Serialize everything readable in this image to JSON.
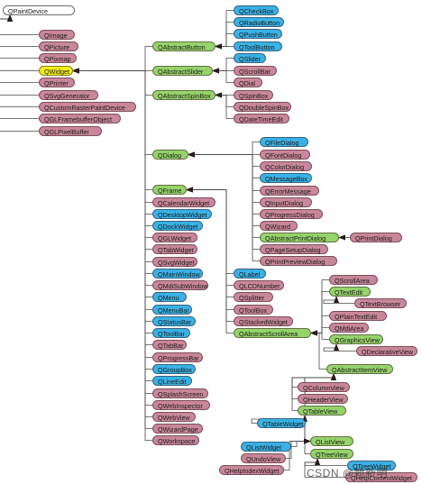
{
  "diagram": {
    "colors": {
      "pink": "#c9879a",
      "blue": "#39b2e6",
      "green": "#96d36a",
      "yellow": "#f3ef16",
      "white": "#ffffff",
      "edge": "#4a4a4a",
      "arrow": "#2a1a1a"
    },
    "nodes": [
      {
        "id": "QPaintDevice",
        "label": "QPaintDevice",
        "kind": "white"
      },
      {
        "id": "QImage",
        "label": "QImage",
        "kind": "pink"
      },
      {
        "id": "QPicture",
        "label": "QPicture",
        "kind": "pink"
      },
      {
        "id": "QPixmap",
        "label": "QPixmap",
        "kind": "pink"
      },
      {
        "id": "QWidget",
        "label": "QWidget",
        "kind": "yellow"
      },
      {
        "id": "QPrinter",
        "label": "QPrinter",
        "kind": "pink"
      },
      {
        "id": "QSvgGenerator",
        "label": "QSvgGenerator",
        "kind": "pink"
      },
      {
        "id": "QCustomRasterPaintDevice",
        "label": "QCustomRasterPaintDevice",
        "kind": "pink"
      },
      {
        "id": "QGLFramebufferObject",
        "label": "QGLFramebufferObject",
        "kind": "pink"
      },
      {
        "id": "QGLPixelBuffer",
        "label": "QGLPixelBuffer",
        "kind": "pink"
      },
      {
        "id": "QAbstractButton",
        "label": "QAbstractButton",
        "kind": "green"
      },
      {
        "id": "QCheckBox",
        "label": "QCheckBox",
        "kind": "blue"
      },
      {
        "id": "QRadioButton",
        "label": "QRadioButton",
        "kind": "blue"
      },
      {
        "id": "QPushButton",
        "label": "QPushButton",
        "kind": "blue"
      },
      {
        "id": "QToolButton",
        "label": "QToolButton",
        "kind": "blue"
      },
      {
        "id": "QAbstractSlider",
        "label": "QAbstractSlider",
        "kind": "green"
      },
      {
        "id": "QSlider",
        "label": "QSlider",
        "kind": "blue"
      },
      {
        "id": "QScrollBar",
        "label": "QScrollBar",
        "kind": "pink"
      },
      {
        "id": "QDial",
        "label": "QDial",
        "kind": "pink"
      },
      {
        "id": "QAbstractSpinBox",
        "label": "QAbstractSpinBox",
        "kind": "green"
      },
      {
        "id": "QSpinBox",
        "label": "QSpinBox",
        "kind": "pink"
      },
      {
        "id": "QDoubleSpinBox",
        "label": "QDoubleSpinBox",
        "kind": "pink"
      },
      {
        "id": "QDateTimeEdit",
        "label": "QDateTimeEdit",
        "kind": "pink"
      },
      {
        "id": "QDialog",
        "label": "QDialog",
        "kind": "green"
      },
      {
        "id": "QFileDialog",
        "label": "QFileDialog",
        "kind": "blue"
      },
      {
        "id": "QFontDialog",
        "label": "QFontDialog",
        "kind": "pink"
      },
      {
        "id": "QColorDialog",
        "label": "QColorDialog",
        "kind": "pink"
      },
      {
        "id": "QMessageBox",
        "label": "QMessageBox",
        "kind": "blue"
      },
      {
        "id": "QErrorMessage",
        "label": "QErrorMessage",
        "kind": "pink"
      },
      {
        "id": "QInputDialog",
        "label": "QInputDialog",
        "kind": "pink"
      },
      {
        "id": "QProgressDialog",
        "label": "QProgressDialog",
        "kind": "pink"
      },
      {
        "id": "QWizard",
        "label": "QWizard",
        "kind": "pink"
      },
      {
        "id": "QAbstractPrintDialog",
        "label": "QAbstractPrintDialog",
        "kind": "green"
      },
      {
        "id": "QPrintDialog",
        "label": "QPrintDialog",
        "kind": "pink"
      },
      {
        "id": "QPageSetupDialog",
        "label": "QPageSetupDialog",
        "kind": "pink"
      },
      {
        "id": "QPrintPreviewDialog",
        "label": "QPrintPreviewDialog",
        "kind": "pink"
      },
      {
        "id": "QFrame",
        "label": "QFrame",
        "kind": "green"
      },
      {
        "id": "QCalendarWidget",
        "label": "QCalendarWidget",
        "kind": "pink"
      },
      {
        "id": "QDesktopWidget",
        "label": "QDesktopWidget",
        "kind": "blue"
      },
      {
        "id": "QDockWidget",
        "label": "QDockWidget",
        "kind": "blue"
      },
      {
        "id": "QGLWidget",
        "label": "QGLWidget",
        "kind": "pink"
      },
      {
        "id": "QTabWidget",
        "label": "QTabWidget",
        "kind": "pink"
      },
      {
        "id": "QSvgWidget",
        "label": "QSvgWidget",
        "kind": "pink"
      },
      {
        "id": "QMainWindow",
        "label": "QMainWindow",
        "kind": "blue"
      },
      {
        "id": "QMdiSubWindow",
        "label": "QMdiSubWindow",
        "kind": "pink"
      },
      {
        "id": "QMenu",
        "label": "QMenu",
        "kind": "blue"
      },
      {
        "id": "QMenuBar",
        "label": "QMenuBar",
        "kind": "blue"
      },
      {
        "id": "QStatusBar",
        "label": "QStatusBar",
        "kind": "blue"
      },
      {
        "id": "QToolBar",
        "label": "QToolBar",
        "kind": "blue"
      },
      {
        "id": "QTabBar",
        "label": "QTabBar",
        "kind": "pink"
      },
      {
        "id": "QProgressBar",
        "label": "QProgressBar",
        "kind": "pink"
      },
      {
        "id": "QGroupBox",
        "label": "QGroupBox",
        "kind": "blue"
      },
      {
        "id": "QLineEdit",
        "label": "QLineEdit",
        "kind": "blue"
      },
      {
        "id": "QSplashScreen",
        "label": "QSplashScreen",
        "kind": "pink"
      },
      {
        "id": "QWebInspector",
        "label": "QWebInspector",
        "kind": "pink"
      },
      {
        "id": "QWebView",
        "label": "QWebView",
        "kind": "pink"
      },
      {
        "id": "QWizardPage",
        "label": "QWizardPage",
        "kind": "pink"
      },
      {
        "id": "QWorkspace",
        "label": "QWorkspace",
        "kind": "pink"
      },
      {
        "id": "QLabel",
        "label": "QLabel",
        "kind": "blue"
      },
      {
        "id": "QLCDNumber",
        "label": "QLCDNumber",
        "kind": "pink"
      },
      {
        "id": "QSplitter",
        "label": "QSplitter",
        "kind": "pink"
      },
      {
        "id": "QToolBox",
        "label": "QToolBox",
        "kind": "pink"
      },
      {
        "id": "QStackedWidget",
        "label": "QStackedWidget",
        "kind": "pink"
      },
      {
        "id": "QAbstractScrollArea",
        "label": "QAbstractScrollArea",
        "kind": "green"
      },
      {
        "id": "QScrollArea",
        "label": "QScrollArea",
        "kind": "pink"
      },
      {
        "id": "QTextEdit",
        "label": "QTextEdit",
        "kind": "green"
      },
      {
        "id": "QTextBrowser",
        "label": "QTextBrowser",
        "kind": "pink"
      },
      {
        "id": "QPlainTextEdit",
        "label": "QPlainTextEdit",
        "kind": "pink"
      },
      {
        "id": "QMdiArea",
        "label": "QMdiArea",
        "kind": "pink"
      },
      {
        "id": "QGraphicsView",
        "label": "QGraphicsView",
        "kind": "green"
      },
      {
        "id": "QDeclarativeView",
        "label": "QDeclarativeView",
        "kind": "pink"
      },
      {
        "id": "QAbstractItemView",
        "label": "QAbstractItemView",
        "kind": "green"
      },
      {
        "id": "QColumnView",
        "label": "QColumnView",
        "kind": "pink"
      },
      {
        "id": "QHeaderView",
        "label": "QHeaderView",
        "kind": "pink"
      },
      {
        "id": "QTableView",
        "label": "QTableView",
        "kind": "green"
      },
      {
        "id": "QTableWidget",
        "label": "QTableWidget",
        "kind": "blue"
      },
      {
        "id": "QListView",
        "label": "QListView",
        "kind": "green"
      },
      {
        "id": "QListWidget",
        "label": "QListWidget",
        "kind": "blue"
      },
      {
        "id": "QUndoView",
        "label": "QUndoView",
        "kind": "pink"
      },
      {
        "id": "QHelpIndexWidget",
        "label": "QHelpIndexWidget",
        "kind": "pink"
      },
      {
        "id": "QTreeView",
        "label": "QTreeView",
        "kind": "green"
      },
      {
        "id": "QTreeWidget",
        "label": "QTreeWidget",
        "kind": "blue"
      },
      {
        "id": "QHelpContentWidget",
        "label": "QHelpContentWidget",
        "kind": "pink"
      }
    ],
    "edges": [
      [
        "QImage",
        "QPaintDevice"
      ],
      [
        "QPicture",
        "QPaintDevice"
      ],
      [
        "QPixmap",
        "QPaintDevice"
      ],
      [
        "QWidget",
        "QPaintDevice"
      ],
      [
        "QPrinter",
        "QPaintDevice"
      ],
      [
        "QSvgGenerator",
        "QPaintDevice"
      ],
      [
        "QCustomRasterPaintDevice",
        "QPaintDevice"
      ],
      [
        "QGLFramebufferObject",
        "QPaintDevice"
      ],
      [
        "QGLPixelBuffer",
        "QPaintDevice"
      ],
      [
        "QAbstractButton",
        "QWidget"
      ],
      [
        "QAbstractSlider",
        "QWidget"
      ],
      [
        "QAbstractSpinBox",
        "QWidget"
      ],
      [
        "QDialog",
        "QWidget"
      ],
      [
        "QFrame",
        "QWidget"
      ],
      [
        "QCalendarWidget",
        "QWidget"
      ],
      [
        "QDesktopWidget",
        "QWidget"
      ],
      [
        "QDockWidget",
        "QWidget"
      ],
      [
        "QGLWidget",
        "QWidget"
      ],
      [
        "QTabWidget",
        "QWidget"
      ],
      [
        "QSvgWidget",
        "QWidget"
      ],
      [
        "QMainWindow",
        "QWidget"
      ],
      [
        "QMdiSubWindow",
        "QWidget"
      ],
      [
        "QMenu",
        "QWidget"
      ],
      [
        "QMenuBar",
        "QWidget"
      ],
      [
        "QStatusBar",
        "QWidget"
      ],
      [
        "QToolBar",
        "QWidget"
      ],
      [
        "QTabBar",
        "QWidget"
      ],
      [
        "QProgressBar",
        "QWidget"
      ],
      [
        "QGroupBox",
        "QWidget"
      ],
      [
        "QLineEdit",
        "QWidget"
      ],
      [
        "QSplashScreen",
        "QWidget"
      ],
      [
        "QWebInspector",
        "QWidget"
      ],
      [
        "QWebView",
        "QWidget"
      ],
      [
        "QWizardPage",
        "QWidget"
      ],
      [
        "QWorkspace",
        "QWidget"
      ],
      [
        "QCheckBox",
        "QAbstractButton"
      ],
      [
        "QRadioButton",
        "QAbstractButton"
      ],
      [
        "QPushButton",
        "QAbstractButton"
      ],
      [
        "QToolButton",
        "QAbstractButton"
      ],
      [
        "QSlider",
        "QAbstractSlider"
      ],
      [
        "QScrollBar",
        "QAbstractSlider"
      ],
      [
        "QDial",
        "QAbstractSlider"
      ],
      [
        "QSpinBox",
        "QAbstractSpinBox"
      ],
      [
        "QDoubleSpinBox",
        "QAbstractSpinBox"
      ],
      [
        "QDateTimeEdit",
        "QAbstractSpinBox"
      ],
      [
        "QFileDialog",
        "QDialog"
      ],
      [
        "QFontDialog",
        "QDialog"
      ],
      [
        "QColorDialog",
        "QDialog"
      ],
      [
        "QMessageBox",
        "QDialog"
      ],
      [
        "QErrorMessage",
        "QDialog"
      ],
      [
        "QInputDialog",
        "QDialog"
      ],
      [
        "QProgressDialog",
        "QDialog"
      ],
      [
        "QWizard",
        "QDialog"
      ],
      [
        "QAbstractPrintDialog",
        "QDialog"
      ],
      [
        "QPageSetupDialog",
        "QDialog"
      ],
      [
        "QPrintPreviewDialog",
        "QDialog"
      ],
      [
        "QPrintDialog",
        "QAbstractPrintDialog"
      ],
      [
        "QLabel",
        "QFrame"
      ],
      [
        "QLCDNumber",
        "QFrame"
      ],
      [
        "QSplitter",
        "QFrame"
      ],
      [
        "QToolBox",
        "QFrame"
      ],
      [
        "QStackedWidget",
        "QFrame"
      ],
      [
        "QAbstractScrollArea",
        "QFrame"
      ],
      [
        "QScrollArea",
        "QAbstractScrollArea"
      ],
      [
        "QTextEdit",
        "QAbstractScrollArea"
      ],
      [
        "QPlainTextEdit",
        "QAbstractScrollArea"
      ],
      [
        "QMdiArea",
        "QAbstractScrollArea"
      ],
      [
        "QGraphicsView",
        "QAbstractScrollArea"
      ],
      [
        "QAbstractItemView",
        "QAbstractScrollArea"
      ],
      [
        "QTextBrowser",
        "QTextEdit"
      ],
      [
        "QDeclarativeView",
        "QGraphicsView"
      ],
      [
        "QColumnView",
        "QAbstractItemView"
      ],
      [
        "QHeaderView",
        "QAbstractItemView"
      ],
      [
        "QTableView",
        "QAbstractItemView"
      ],
      [
        "QListView",
        "QAbstractItemView"
      ],
      [
        "QTreeView",
        "QAbstractItemView"
      ],
      [
        "QTableWidget",
        "QTableView"
      ],
      [
        "QListWidget",
        "QListView"
      ],
      [
        "QUndoView",
        "QListView"
      ],
      [
        "QHelpIndexWidget",
        "QListView"
      ],
      [
        "QTreeWidget",
        "QTreeView"
      ],
      [
        "QHelpContentWidget",
        "QTreeView"
      ]
    ]
  },
  "watermark": "CSDN @赖新明"
}
